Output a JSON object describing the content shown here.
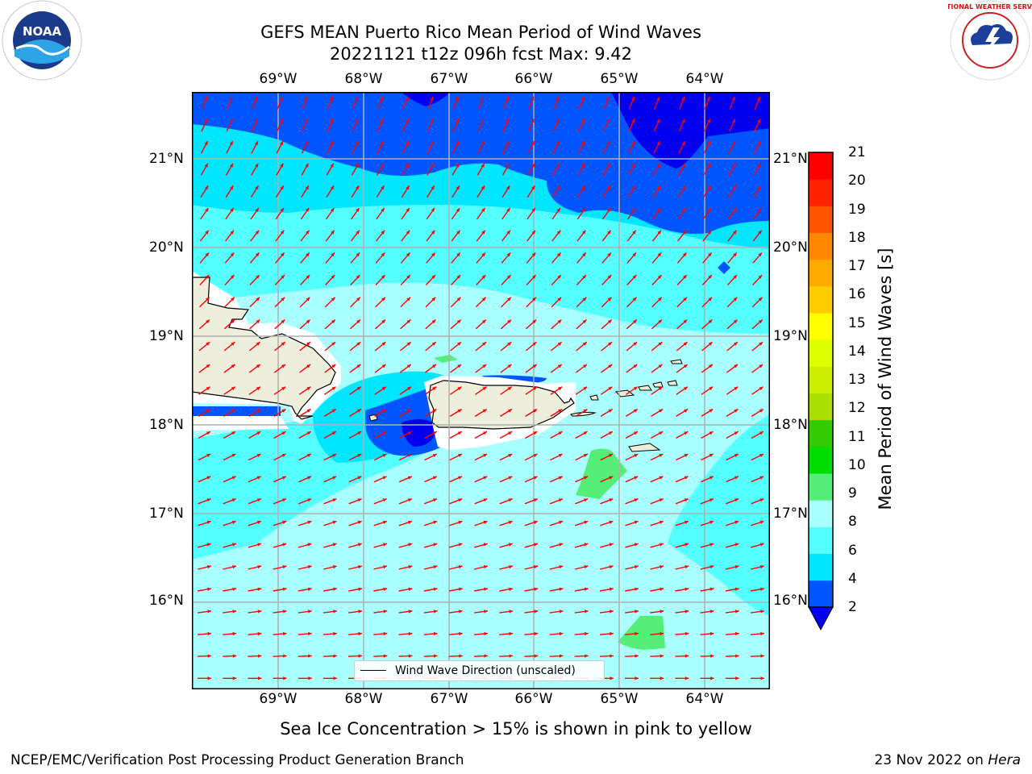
{
  "title": {
    "line1": "GEFS MEAN Puerto Rico Mean Period of Wind Waves",
    "line2": "20221121 t12z 096h fcst   Max: 9.42"
  },
  "map": {
    "lon_labels": [
      "69°W",
      "68°W",
      "67°W",
      "66°W",
      "65°W",
      "64°W"
    ],
    "lat_labels": [
      "21°N",
      "20°N",
      "19°N",
      "18°N",
      "17°N",
      "16°N"
    ],
    "legend_label": "Wind Wave Direction (unscaled)",
    "arrow_color": "#ff0000",
    "land_color": "#eeeedd"
  },
  "colorbar": {
    "title": "Mean Period of Wind Waves [s]",
    "tick_labels": [
      "2",
      "4",
      "6",
      "8",
      "9",
      "10",
      "11",
      "12",
      "13",
      "14",
      "15",
      "16",
      "17",
      "18",
      "19",
      "20",
      "21"
    ],
    "band_colors": [
      "#0055ff",
      "#00e6ff",
      "#55ffff",
      "#aaffff",
      "#55ee77",
      "#00dd00",
      "#33cc00",
      "#aadd00",
      "#ccee00",
      "#ddff00",
      "#ffff00",
      "#ffcc00",
      "#ffaa00",
      "#ff8800",
      "#ff5500",
      "#ff2200",
      "#ff0000"
    ],
    "under_color": "#0000ee"
  },
  "caption": "Sea Ice Concentration > 15% is shown in pink to yellow",
  "footer": {
    "left": "NCEP/EMC/Verification Post Processing Product Generation Branch",
    "right_prefix": "23 Nov 2022 on ",
    "right_host": "Hera"
  },
  "logos": {
    "left_text": "NOAA",
    "right_text": "NATIONAL WEATHER SERVICE"
  }
}
